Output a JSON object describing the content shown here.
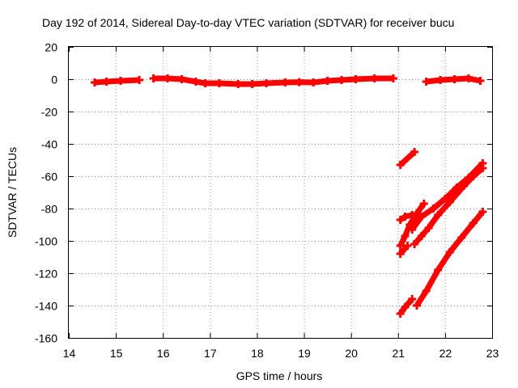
{
  "chart_data": {
    "type": "scatter",
    "title": "Day 192 of 2014, Sidereal Day-to-day VTEC variation (SDTVAR) for receiver bucu",
    "xlabel": "GPS time / hours",
    "ylabel": "SDTVAR / TECUs",
    "xlim": [
      14,
      23
    ],
    "ylim": [
      -160,
      20
    ],
    "xticks": [
      14,
      15,
      16,
      17,
      18,
      19,
      20,
      21,
      22,
      23
    ],
    "yticks": [
      -160,
      -140,
      -120,
      -100,
      -80,
      -60,
      -40,
      -20,
      0,
      20
    ],
    "grid": true,
    "legend": "none",
    "colors": {
      "series": "#ff0000"
    },
    "series": [
      {
        "segments": [
          [
            [
              14.55,
              -2
            ],
            [
              14.8,
              -1.5
            ],
            [
              15.1,
              -1
            ],
            [
              15.5,
              -0.5
            ]
          ],
          [
            [
              15.8,
              0.5
            ],
            [
              16.1,
              0.5
            ],
            [
              16.4,
              0
            ],
            [
              16.7,
              -1.5
            ],
            [
              16.9,
              -2.5
            ],
            [
              17.2,
              -2.5
            ],
            [
              17.6,
              -3
            ],
            [
              17.9,
              -3
            ],
            [
              18.2,
              -2.5
            ],
            [
              18.6,
              -2
            ],
            [
              18.9,
              -1.8
            ],
            [
              19.2,
              -2
            ],
            [
              19.5,
              -1
            ],
            [
              19.8,
              -0.5
            ],
            [
              20.1,
              0
            ],
            [
              20.5,
              0.5
            ],
            [
              20.9,
              0.5
            ]
          ],
          [
            [
              21.6,
              -1.5
            ],
            [
              21.9,
              -0.5
            ],
            [
              22.2,
              0
            ],
            [
              22.5,
              0.5
            ],
            [
              22.75,
              -1
            ]
          ],
          [
            [
              21.05,
              -53
            ],
            [
              21.35,
              -45
            ]
          ],
          [
            [
              21.05,
              -87
            ],
            [
              21.15,
              -85
            ],
            [
              21.3,
              -84
            ]
          ],
          [
            [
              21.05,
              -103
            ],
            [
              21.15,
              -97
            ],
            [
              21.25,
              -90
            ],
            [
              21.4,
              -83
            ],
            [
              21.55,
              -77
            ]
          ],
          [
            [
              21.05,
              -108
            ],
            [
              21.2,
              -103
            ]
          ],
          [
            [
              21.35,
              -102
            ],
            [
              21.5,
              -97
            ],
            [
              21.65,
              -92
            ],
            [
              21.85,
              -84
            ],
            [
              22.1,
              -76
            ],
            [
              22.4,
              -66
            ],
            [
              22.6,
              -60
            ],
            [
              22.8,
              -55
            ]
          ],
          [
            [
              21.3,
              -93
            ],
            [
              21.5,
              -85
            ],
            [
              21.75,
              -80
            ],
            [
              22.0,
              -74
            ],
            [
              22.25,
              -67
            ],
            [
              22.5,
              -61
            ],
            [
              22.8,
              -52
            ]
          ],
          [
            [
              21.05,
              -145
            ],
            [
              21.15,
              -141
            ],
            [
              21.3,
              -136
            ]
          ],
          [
            [
              21.4,
              -140
            ],
            [
              21.6,
              -131
            ],
            [
              21.85,
              -118
            ],
            [
              22.1,
              -107
            ],
            [
              22.35,
              -98
            ],
            [
              22.6,
              -89
            ],
            [
              22.8,
              -82
            ]
          ]
        ]
      }
    ]
  }
}
